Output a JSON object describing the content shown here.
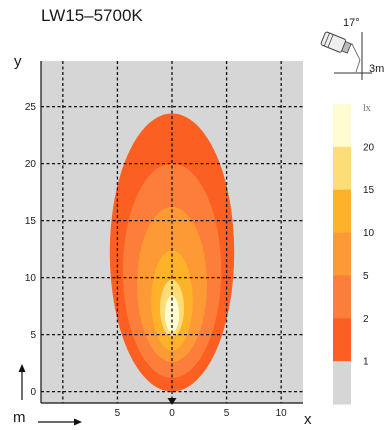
{
  "chart_data": {
    "type": "heatmap",
    "title": "LW15–5700K",
    "xlabel": "x",
    "ylabel": "y",
    "x_unit_label": "m",
    "xlim": [
      -12,
      12
    ],
    "ylim": [
      -1,
      29
    ],
    "x_ticks": [
      -10,
      -5,
      0,
      5,
      10
    ],
    "x_tick_labels": [
      "",
      "5",
      "0",
      "5",
      "10"
    ],
    "y_ticks": [
      0,
      5,
      10,
      15,
      20,
      25
    ],
    "y_tick_labels": [
      "0",
      "5",
      "10",
      "15",
      "20",
      "25"
    ],
    "grid": true,
    "background_color": "#d6d6d6",
    "mounting": {
      "angle_label": "17°",
      "height_label": "3m"
    },
    "legend": {
      "unit": "lx",
      "entries": [
        {
          "label": "20",
          "color": "#fefcd0"
        },
        {
          "label": "15",
          "color": "#fedc76"
        },
        {
          "label": "10",
          "color": "#fdb22a"
        },
        {
          "label": "5",
          "color": "#fd9a36"
        },
        {
          "label": "2",
          "color": "#fd7e3a"
        },
        {
          "label": "1",
          "color": "#fc5f22"
        },
        {
          "label": "",
          "color": "#d6d6d6"
        }
      ]
    },
    "contours": [
      {
        "lux": 1,
        "color": "#fc5f22",
        "cx": 0,
        "cy": 12.2,
        "rx": 5.7,
        "ry": 12.2
      },
      {
        "lux": 2,
        "color": "#fd7e3a",
        "cx": 0,
        "cy": 10.6,
        "rx": 4.5,
        "ry": 9.4
      },
      {
        "lux": 5,
        "color": "#fd9a36",
        "cx": 0,
        "cy": 9.4,
        "rx": 3.2,
        "ry": 6.8
      },
      {
        "lux": 10,
        "color": "#fdb22a",
        "cx": 0,
        "cy": 8.0,
        "rx": 1.9,
        "ry": 4.4
      },
      {
        "lux": 15,
        "color": "#fedc76",
        "cx": 0,
        "cy": 7.3,
        "rx": 1.1,
        "ry": 2.5
      },
      {
        "lux": 20,
        "color": "#fefcd0",
        "cx": 0,
        "cy": 6.8,
        "rx": 0.65,
        "ry": 1.6
      }
    ]
  }
}
